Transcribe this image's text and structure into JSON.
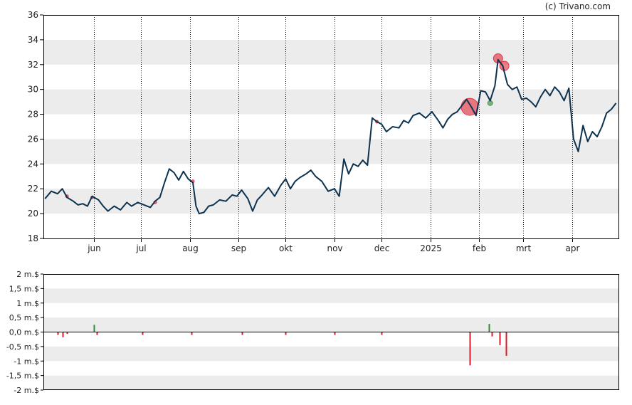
{
  "credit": "(c) Trivano.com",
  "colors": {
    "price_line": "#0d3350",
    "band": "#ececec",
    "buy": "#2e8b3a",
    "sell": "#e0182a",
    "axis": "#000000"
  },
  "chart_data": [
    {
      "type": "line",
      "title": "",
      "xlabel": "",
      "ylabel": "",
      "ylim": [
        18,
        36
      ],
      "yticks": [
        "18",
        "20",
        "22",
        "24",
        "26",
        "28",
        "30",
        "32",
        "34",
        "36"
      ],
      "xticks": [
        "jun",
        "jul",
        "aug",
        "sep",
        "okt",
        "nov",
        "dec",
        "2025",
        "feb",
        "mrt",
        "apr"
      ],
      "grid": "vertical dotted lines at month ticks, alternating grey horizontal bands",
      "series": [
        {
          "values": [
            {
              "x": "2024-05-01",
              "y": 21.2
            },
            {
              "x": "2024-05-05",
              "y": 21.8
            },
            {
              "x": "2024-05-09",
              "y": 21.6
            },
            {
              "x": "2024-05-12",
              "y": 22.0
            },
            {
              "x": "2024-05-15",
              "y": 21.3
            },
            {
              "x": "2024-05-19",
              "y": 21.0
            },
            {
              "x": "2024-05-22",
              "y": 20.7
            },
            {
              "x": "2024-05-25",
              "y": 20.8
            },
            {
              "x": "2024-05-28",
              "y": 20.6
            },
            {
              "x": "2024-05-31",
              "y": 21.4
            },
            {
              "x": "2024-06-04",
              "y": 21.1
            },
            {
              "x": "2024-06-07",
              "y": 20.6
            },
            {
              "x": "2024-06-10",
              "y": 20.2
            },
            {
              "x": "2024-06-14",
              "y": 20.6
            },
            {
              "x": "2024-06-18",
              "y": 20.3
            },
            {
              "x": "2024-06-22",
              "y": 20.9
            },
            {
              "x": "2024-06-25",
              "y": 20.6
            },
            {
              "x": "2024-06-29",
              "y": 20.9
            },
            {
              "x": "2024-07-03",
              "y": 20.7
            },
            {
              "x": "2024-07-07",
              "y": 20.5
            },
            {
              "x": "2024-07-10",
              "y": 21.0
            },
            {
              "x": "2024-07-13",
              "y": 21.3
            },
            {
              "x": "2024-07-16",
              "y": 22.5
            },
            {
              "x": "2024-07-19",
              "y": 23.6
            },
            {
              "x": "2024-07-22",
              "y": 23.3
            },
            {
              "x": "2024-07-25",
              "y": 22.7
            },
            {
              "x": "2024-07-28",
              "y": 23.4
            },
            {
              "x": "2024-07-31",
              "y": 22.8
            },
            {
              "x": "2024-08-03",
              "y": 22.5
            },
            {
              "x": "2024-08-05",
              "y": 20.6
            },
            {
              "x": "2024-08-07",
              "y": 20.0
            },
            {
              "x": "2024-08-10",
              "y": 20.1
            },
            {
              "x": "2024-08-13",
              "y": 20.6
            },
            {
              "x": "2024-08-16",
              "y": 20.7
            },
            {
              "x": "2024-08-20",
              "y": 21.1
            },
            {
              "x": "2024-08-24",
              "y": 21.0
            },
            {
              "x": "2024-08-28",
              "y": 21.5
            },
            {
              "x": "2024-08-31",
              "y": 21.4
            },
            {
              "x": "2024-09-03",
              "y": 21.9
            },
            {
              "x": "2024-09-07",
              "y": 21.2
            },
            {
              "x": "2024-09-10",
              "y": 20.2
            },
            {
              "x": "2024-09-13",
              "y": 21.1
            },
            {
              "x": "2024-09-16",
              "y": 21.5
            },
            {
              "x": "2024-09-20",
              "y": 22.1
            },
            {
              "x": "2024-09-24",
              "y": 21.4
            },
            {
              "x": "2024-09-28",
              "y": 22.3
            },
            {
              "x": "2024-10-01",
              "y": 22.8
            },
            {
              "x": "2024-10-04",
              "y": 22.0
            },
            {
              "x": "2024-10-07",
              "y": 22.6
            },
            {
              "x": "2024-10-10",
              "y": 22.9
            },
            {
              "x": "2024-10-14",
              "y": 23.2
            },
            {
              "x": "2024-10-17",
              "y": 23.5
            },
            {
              "x": "2024-10-20",
              "y": 23.0
            },
            {
              "x": "2024-10-24",
              "y": 22.6
            },
            {
              "x": "2024-10-28",
              "y": 21.8
            },
            {
              "x": "2024-11-01",
              "y": 22.0
            },
            {
              "x": "2024-11-04",
              "y": 21.4
            },
            {
              "x": "2024-11-07",
              "y": 24.4
            },
            {
              "x": "2024-11-10",
              "y": 23.2
            },
            {
              "x": "2024-11-13",
              "y": 24.0
            },
            {
              "x": "2024-11-16",
              "y": 23.8
            },
            {
              "x": "2024-11-19",
              "y": 24.3
            },
            {
              "x": "2024-11-22",
              "y": 23.9
            },
            {
              "x": "2024-11-25",
              "y": 27.7
            },
            {
              "x": "2024-11-28",
              "y": 27.4
            },
            {
              "x": "2024-12-01",
              "y": 27.2
            },
            {
              "x": "2024-12-04",
              "y": 26.6
            },
            {
              "x": "2024-12-08",
              "y": 27.0
            },
            {
              "x": "2024-12-12",
              "y": 26.9
            },
            {
              "x": "2024-12-15",
              "y": 27.5
            },
            {
              "x": "2024-12-18",
              "y": 27.3
            },
            {
              "x": "2024-12-21",
              "y": 27.9
            },
            {
              "x": "2024-12-25",
              "y": 28.1
            },
            {
              "x": "2024-12-29",
              "y": 27.7
            },
            {
              "x": "2025-01-02",
              "y": 28.2
            },
            {
              "x": "2025-01-06",
              "y": 27.5
            },
            {
              "x": "2025-01-09",
              "y": 26.9
            },
            {
              "x": "2025-01-12",
              "y": 27.6
            },
            {
              "x": "2025-01-15",
              "y": 28.0
            },
            {
              "x": "2025-01-18",
              "y": 28.2
            },
            {
              "x": "2025-01-21",
              "y": 28.7
            },
            {
              "x": "2025-01-24",
              "y": 29.2
            },
            {
              "x": "2025-01-27",
              "y": 28.6
            },
            {
              "x": "2025-01-30",
              "y": 27.9
            },
            {
              "x": "2025-02-02",
              "y": 29.9
            },
            {
              "x": "2025-02-05",
              "y": 29.8
            },
            {
              "x": "2025-02-08",
              "y": 29.1
            },
            {
              "x": "2025-02-11",
              "y": 30.3
            },
            {
              "x": "2025-02-13",
              "y": 32.4
            },
            {
              "x": "2025-02-16",
              "y": 31.9
            },
            {
              "x": "2025-02-19",
              "y": 30.4
            },
            {
              "x": "2025-02-22",
              "y": 30.0
            },
            {
              "x": "2025-02-25",
              "y": 30.2
            },
            {
              "x": "2025-02-28",
              "y": 29.2
            },
            {
              "x": "2025-03-03",
              "y": 29.3
            },
            {
              "x": "2025-03-06",
              "y": 29.0
            },
            {
              "x": "2025-03-09",
              "y": 28.6
            },
            {
              "x": "2025-03-12",
              "y": 29.4
            },
            {
              "x": "2025-03-15",
              "y": 30.0
            },
            {
              "x": "2025-03-18",
              "y": 29.5
            },
            {
              "x": "2025-03-21",
              "y": 30.2
            },
            {
              "x": "2025-03-24",
              "y": 29.8
            },
            {
              "x": "2025-03-27",
              "y": 29.1
            },
            {
              "x": "2025-03-30",
              "y": 30.1
            },
            {
              "x": "2025-04-02",
              "y": 26.0
            },
            {
              "x": "2025-04-05",
              "y": 25.0
            },
            {
              "x": "2025-04-08",
              "y": 27.1
            },
            {
              "x": "2025-04-11",
              "y": 25.8
            },
            {
              "x": "2025-04-14",
              "y": 26.6
            },
            {
              "x": "2025-04-17",
              "y": 26.2
            },
            {
              "x": "2025-04-20",
              "y": 27.0
            },
            {
              "x": "2025-04-23",
              "y": 28.1
            },
            {
              "x": "2025-04-26",
              "y": 28.4
            },
            {
              "x": "2025-04-29",
              "y": 28.9
            }
          ]
        }
      ],
      "markers": [
        {
          "kind": "sell",
          "x": "2024-05-15",
          "y": 21.4,
          "size": "tiny"
        },
        {
          "kind": "sell",
          "x": "2024-05-31",
          "y": 21.3,
          "size": "tiny"
        },
        {
          "kind": "sell",
          "x": "2024-07-10",
          "y": 20.9,
          "size": "tiny"
        },
        {
          "kind": "sell",
          "x": "2024-08-03",
          "y": 22.6,
          "size": "tiny"
        },
        {
          "kind": "sell",
          "x": "2024-11-28",
          "y": 27.4,
          "size": "tiny"
        },
        {
          "kind": "sell",
          "x": "2025-01-26",
          "y": 28.6,
          "size": "large"
        },
        {
          "kind": "buy",
          "x": "2025-02-08",
          "y": 28.9,
          "size": "small"
        },
        {
          "kind": "sell",
          "x": "2025-02-13",
          "y": 32.5,
          "size": "medium"
        },
        {
          "kind": "sell",
          "x": "2025-02-17",
          "y": 31.9,
          "size": "medium"
        }
      ]
    },
    {
      "type": "bar",
      "title": "",
      "ylim": [
        -2,
        2
      ],
      "yticks": [
        "-2 m.$",
        "-1,5 m.$",
        "-1 m.$",
        "-0,5 m.$",
        "0,0 m.$",
        "0,5 m.$",
        "1 m.$",
        "1,5 m.$",
        "2 m.$"
      ],
      "grid": "alternating grey horizontal bands",
      "series": [
        {
          "values": [
            {
              "x": "2024-05-09",
              "y": -0.1
            },
            {
              "x": "2024-05-12",
              "y": -0.18
            },
            {
              "x": "2024-05-15",
              "y": -0.06
            },
            {
              "x": "2024-06-01",
              "y": 0.25
            },
            {
              "x": "2024-06-03",
              "y": -0.1
            },
            {
              "x": "2024-07-02",
              "y": -0.1
            },
            {
              "x": "2024-08-02",
              "y": -0.1
            },
            {
              "x": "2024-09-03",
              "y": -0.1
            },
            {
              "x": "2024-10-01",
              "y": -0.1
            },
            {
              "x": "2024-11-01",
              "y": -0.1
            },
            {
              "x": "2024-12-01",
              "y": -0.1
            },
            {
              "x": "2025-01-26",
              "y": -1.15
            },
            {
              "x": "2025-02-07",
              "y": 0.28
            },
            {
              "x": "2025-02-09",
              "y": -0.15
            },
            {
              "x": "2025-02-14",
              "y": -0.45
            },
            {
              "x": "2025-02-18",
              "y": -0.82
            }
          ]
        }
      ]
    }
  ]
}
